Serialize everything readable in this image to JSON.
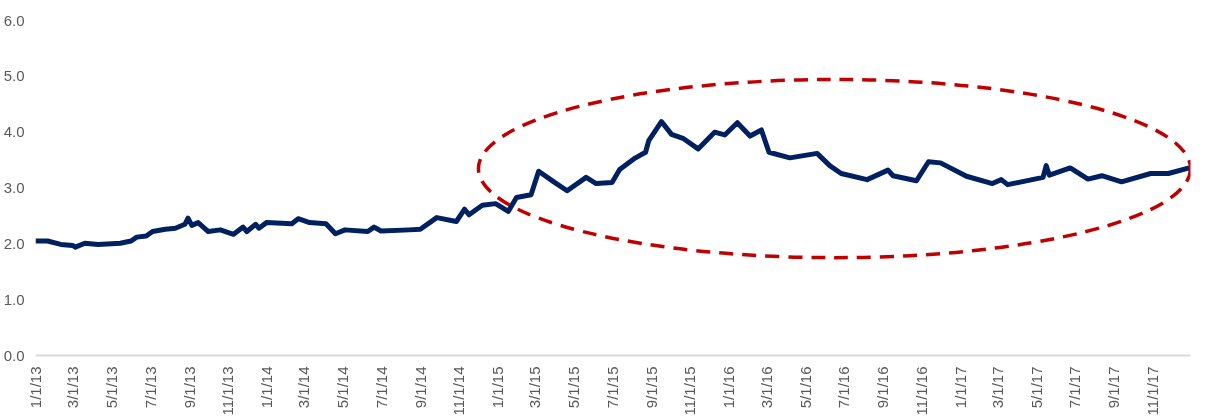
{
  "chart_data": {
    "type": "line",
    "xlim": [
      "2013-01-01",
      "2017-12-31"
    ],
    "ylim": [
      0,
      6.0
    ],
    "yticks": [
      {
        "value": 0,
        "label": "0.0"
      },
      {
        "value": 1,
        "label": "1.0"
      },
      {
        "value": 2,
        "label": "2.0"
      },
      {
        "value": 3,
        "label": "3.0"
      },
      {
        "value": 4,
        "label": "4.0"
      },
      {
        "value": 5,
        "label": "5.0"
      },
      {
        "value": 6,
        "label": "6.0"
      }
    ],
    "xticks": [
      {
        "value": "2013-01-01",
        "label": "1/1/13"
      },
      {
        "value": "2013-03-01",
        "label": "3/1/13"
      },
      {
        "value": "2013-05-01",
        "label": "5/1/13"
      },
      {
        "value": "2013-07-01",
        "label": "7/1/13"
      },
      {
        "value": "2013-09-01",
        "label": "9/1/13"
      },
      {
        "value": "2013-11-01",
        "label": "11/1/13"
      },
      {
        "value": "2014-01-01",
        "label": "1/1/14"
      },
      {
        "value": "2014-03-01",
        "label": "3/1/14"
      },
      {
        "value": "2014-05-01",
        "label": "5/1/14"
      },
      {
        "value": "2014-07-01",
        "label": "7/1/14"
      },
      {
        "value": "2014-09-01",
        "label": "9/1/14"
      },
      {
        "value": "2014-11-01",
        "label": "11/1/14"
      },
      {
        "value": "2015-01-01",
        "label": "1/1/15"
      },
      {
        "value": "2015-03-01",
        "label": "3/1/15"
      },
      {
        "value": "2015-05-01",
        "label": "5/1/15"
      },
      {
        "value": "2015-07-01",
        "label": "7/1/15"
      },
      {
        "value": "2015-09-01",
        "label": "9/1/15"
      },
      {
        "value": "2015-11-01",
        "label": "11/1/15"
      },
      {
        "value": "2016-01-01",
        "label": "1/1/16"
      },
      {
        "value": "2016-03-01",
        "label": "3/1/16"
      },
      {
        "value": "2016-05-01",
        "label": "5/1/16"
      },
      {
        "value": "2016-07-01",
        "label": "7/1/16"
      },
      {
        "value": "2016-09-01",
        "label": "9/1/16"
      },
      {
        "value": "2016-11-01",
        "label": "11/1/16"
      },
      {
        "value": "2017-01-01",
        "label": "1/1/17"
      },
      {
        "value": "2017-03-01",
        "label": "3/1/17"
      },
      {
        "value": "2017-05-01",
        "label": "5/1/17"
      },
      {
        "value": "2017-07-01",
        "label": "7/1/17"
      },
      {
        "value": "2017-09-01",
        "label": "9/1/17"
      },
      {
        "value": "2017-11-01",
        "label": "11/1/17"
      }
    ],
    "grid": false,
    "marker": "none",
    "line_style": "solid",
    "series": [
      {
        "color": "#002060",
        "x": [
          "2013-01-01",
          "2013-01-20",
          "2013-02-10",
          "2013-03-01",
          "2013-03-05",
          "2013-03-20",
          "2013-04-10",
          "2013-05-15",
          "2013-06-01",
          "2013-06-10",
          "2013-06-25",
          "2013-07-05",
          "2013-07-25",
          "2013-08-10",
          "2013-08-25",
          "2013-08-30",
          "2013-09-05",
          "2013-09-15",
          "2013-10-01",
          "2013-10-20",
          "2013-11-10",
          "2013-11-25",
          "2013-12-01",
          "2013-12-15",
          "2013-12-20",
          "2014-01-01",
          "2014-02-10",
          "2014-02-20",
          "2014-03-10",
          "2014-04-05",
          "2014-04-20",
          "2014-05-05",
          "2014-06-10",
          "2014-06-20",
          "2014-07-01",
          "2014-08-15",
          "2014-09-01",
          "2014-09-27",
          "2014-10-28",
          "2014-11-10",
          "2014-11-17",
          "2014-12-08",
          "2014-12-29",
          "2015-01-18",
          "2015-01-31",
          "2015-02-23",
          "2015-03-07",
          "2015-03-31",
          "2015-04-21",
          "2015-05-21",
          "2015-06-06",
          "2015-07-01",
          "2015-07-13",
          "2015-08-07",
          "2015-08-23",
          "2015-08-28",
          "2015-09-17",
          "2015-10-03",
          "2015-10-21",
          "2015-11-14",
          "2015-12-10",
          "2015-12-26",
          "2016-01-15",
          "2016-02-04",
          "2016-02-22",
          "2016-03-05",
          "2016-04-07",
          "2016-05-20",
          "2016-06-09",
          "2016-06-27",
          "2016-08-07",
          "2016-09-09",
          "2016-09-17",
          "2016-10-24",
          "2016-11-12",
          "2016-12-01",
          "2017-01-11",
          "2017-02-21",
          "2017-03-07",
          "2017-03-17",
          "2017-05-12",
          "2017-05-17",
          "2017-05-22",
          "2017-06-24",
          "2017-07-22",
          "2017-08-13",
          "2017-09-13",
          "2017-10-29",
          "2017-11-26",
          "2017-12-29"
        ],
        "values": [
          2.05,
          2.05,
          1.99,
          1.97,
          1.94,
          2.01,
          1.99,
          2.01,
          2.05,
          2.12,
          2.14,
          2.22,
          2.26,
          2.28,
          2.35,
          2.46,
          2.33,
          2.38,
          2.22,
          2.25,
          2.17,
          2.3,
          2.22,
          2.35,
          2.28,
          2.38,
          2.36,
          2.45,
          2.38,
          2.36,
          2.18,
          2.25,
          2.22,
          2.3,
          2.23,
          2.25,
          2.26,
          2.47,
          2.4,
          2.62,
          2.52,
          2.69,
          2.72,
          2.58,
          2.83,
          2.88,
          3.3,
          3.11,
          2.95,
          3.19,
          3.08,
          3.1,
          3.33,
          3.54,
          3.64,
          3.85,
          4.19,
          3.96,
          3.89,
          3.7,
          4.0,
          3.95,
          4.17,
          3.93,
          4.04,
          3.64,
          3.54,
          3.62,
          3.4,
          3.26,
          3.15,
          3.32,
          3.22,
          3.13,
          3.47,
          3.45,
          3.21,
          3.08,
          3.15,
          3.06,
          3.19,
          3.4,
          3.23,
          3.36,
          3.16,
          3.22,
          3.11,
          3.26,
          3.26,
          3.36
        ]
      }
    ]
  }
}
